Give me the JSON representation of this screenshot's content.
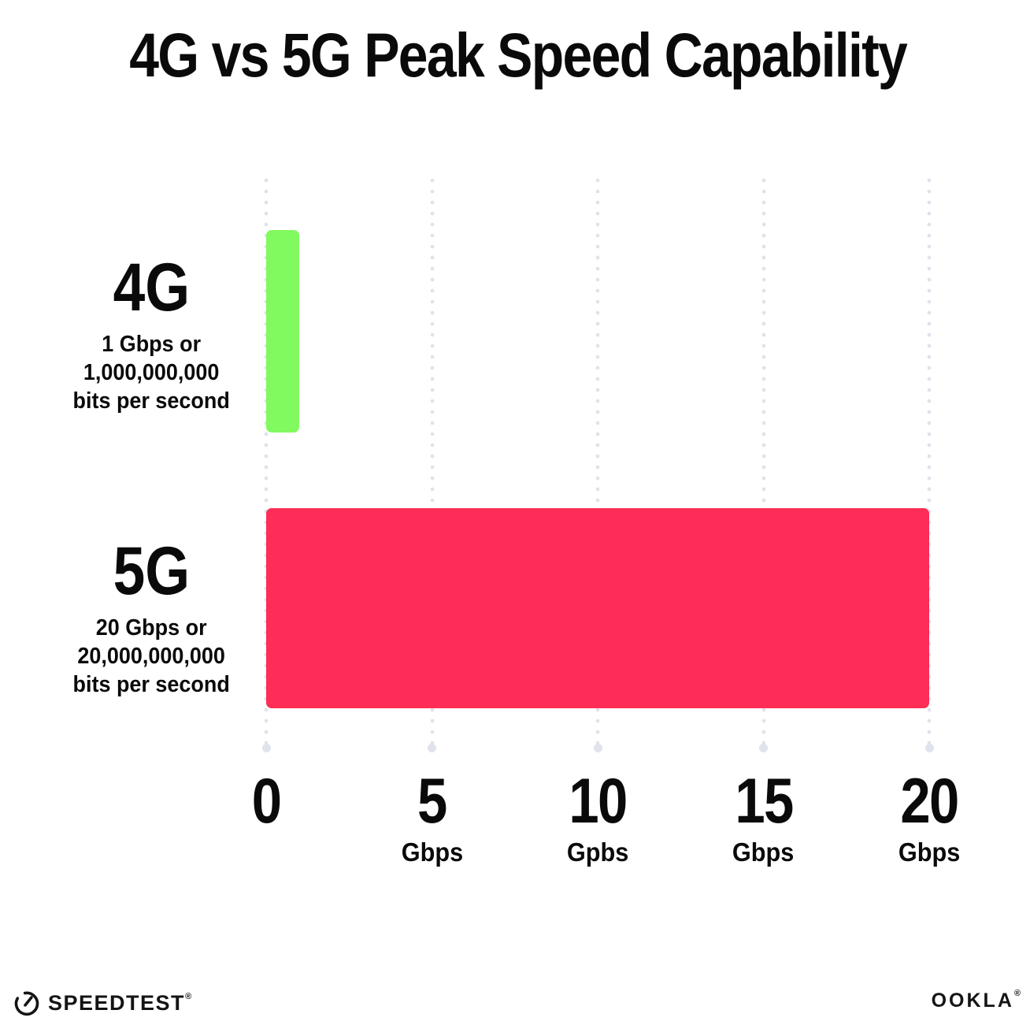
{
  "title": "4G vs 5G Peak Speed Capability",
  "chart_data": {
    "type": "bar",
    "orientation": "horizontal",
    "title": "4G vs 5G Peak Speed Capability",
    "categories": [
      "4G",
      "5G"
    ],
    "values": [
      1,
      20
    ],
    "xlim": [
      0,
      20
    ],
    "bar_colors": [
      "#80FA5F",
      "#FD2D57"
    ],
    "grid": "vertical dotted gridlines at each tick, light gray",
    "legend": "none",
    "category_annotations": [
      "1 Gbps or 1,000,000,000 bits per second",
      "20 Gbps or 20,000,000,000 bits per second"
    ],
    "x_ticks": [
      {
        "value": "0",
        "unit": "",
        "x": 0
      },
      {
        "value": "5",
        "unit": "Gbps",
        "x": 5
      },
      {
        "value": "10",
        "unit": "Gpbs",
        "x": 10
      },
      {
        "value": "15",
        "unit": "Gbps",
        "x": 15
      },
      {
        "value": "20",
        "unit": "Gbps",
        "x": 20
      }
    ]
  },
  "labels": {
    "bar1": {
      "name": "4G",
      "desc1": "1 Gbps or",
      "desc2": "1,000,000,000",
      "desc3": "bits per second"
    },
    "bar2": {
      "name": "5G",
      "desc1": "20 Gbps or",
      "desc2": "20,000,000,000",
      "desc3": "bits per second"
    }
  },
  "footer": {
    "speedtest": "SPEEDTEST",
    "speedtest_mark": "®",
    "ookla": "OOKLA",
    "ookla_mark": "®"
  },
  "colors": {
    "bar_4g": "#80FA5F",
    "bar_5g": "#FD2D57",
    "gridline_dots": "#E0E2EC",
    "text": "#0A0A0A",
    "background": "#FFFFFF"
  }
}
